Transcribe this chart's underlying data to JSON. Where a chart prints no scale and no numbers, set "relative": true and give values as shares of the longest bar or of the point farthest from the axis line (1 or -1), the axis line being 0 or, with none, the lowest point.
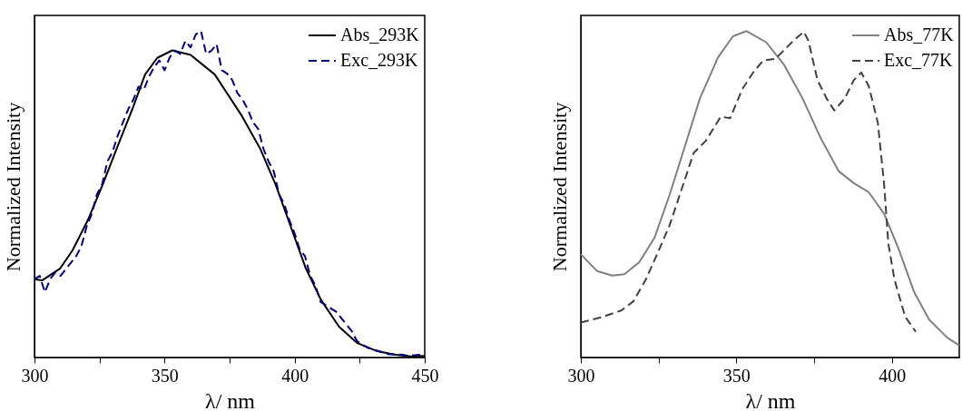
{
  "chart_data": [
    {
      "type": "line",
      "relative": true,
      "xlabel": "λ/ nm",
      "ylabel": "Normalized Intensity",
      "xlim": [
        300,
        450
      ],
      "xticks": [
        300,
        {
          "value": 325,
          "label": null
        },
        350,
        {
          "value": 375,
          "label": null
        },
        400,
        {
          "value": 425,
          "label": null
        },
        450
      ],
      "grid": false,
      "legend": "top right",
      "series": [
        {
          "name": "Abs_293K",
          "color": "#000000",
          "line_style": "solid",
          "x": [
            300,
            302.9,
            309.9,
            314.6,
            320.4,
            326.2,
            332,
            337.9,
            342.5,
            347.2,
            353,
            360,
            369.3,
            379.8,
            386.8,
            392.7,
            398.5,
            404.3,
            410.1,
            417.1,
            424.1,
            431.1,
            438.1,
            445.1,
            450
          ],
          "values": [
            0.24,
            0.236,
            0.273,
            0.328,
            0.419,
            0.529,
            0.648,
            0.767,
            0.867,
            0.918,
            0.941,
            0.927,
            0.867,
            0.739,
            0.639,
            0.529,
            0.401,
            0.273,
            0.177,
            0.094,
            0.044,
            0.021,
            0.009,
            0.003,
            0.005
          ]
        },
        {
          "name": "Exc_293K",
          "color": "#000080",
          "line_style": "dashed",
          "x": [
            300,
            302,
            304,
            306,
            308,
            310,
            312,
            314,
            316,
            318,
            320,
            322,
            324,
            326,
            328,
            330,
            332,
            334,
            336,
            338,
            340,
            342,
            344,
            346,
            348,
            350,
            352,
            354,
            356,
            358,
            360,
            362,
            364,
            366,
            368,
            370,
            372,
            374,
            376,
            378,
            380,
            382,
            384,
            386,
            388,
            390,
            392,
            394,
            396,
            398,
            400,
            402,
            404,
            406,
            408,
            410,
            412,
            414,
            416,
            418,
            420,
            422,
            424,
            426,
            428,
            432,
            436,
            440,
            444,
            450
          ],
          "values": [
            0.24,
            0.25,
            0.2,
            0.24,
            0.26,
            0.25,
            0.27,
            0.29,
            0.31,
            0.34,
            0.4,
            0.44,
            0.5,
            0.53,
            0.6,
            0.63,
            0.68,
            0.72,
            0.76,
            0.79,
            0.83,
            0.82,
            0.86,
            0.89,
            0.91,
            0.88,
            0.92,
            0.94,
            0.93,
            0.97,
            0.95,
            0.99,
            1.0,
            0.93,
            0.94,
            0.96,
            0.88,
            0.87,
            0.85,
            0.81,
            0.79,
            0.76,
            0.72,
            0.7,
            0.64,
            0.6,
            0.57,
            0.5,
            0.47,
            0.42,
            0.38,
            0.33,
            0.31,
            0.25,
            0.22,
            0.17,
            0.16,
            0.15,
            0.14,
            0.12,
            0.1,
            0.08,
            0.05,
            0.04,
            0.03,
            0.02,
            0.01,
            0.01,
            0.005,
            0.01
          ]
        }
      ]
    },
    {
      "type": "line",
      "relative": true,
      "xlabel": "λ/ nm",
      "ylabel": "Normalized Intensity",
      "xlim": [
        300,
        421.7
      ],
      "xticks": [
        300,
        {
          "value": 325,
          "label": null
        },
        350,
        {
          "value": 375,
          "label": null
        },
        400
      ],
      "grid": false,
      "legend": "top right",
      "series": [
        {
          "name": "Abs_77K",
          "color": "#808080",
          "line_style": "solid",
          "x": [
            300,
            305.2,
            310.1,
            314,
            318.8,
            323.7,
            328.5,
            333.4,
            338.3,
            344.1,
            348.9,
            353.3,
            359.6,
            365.4,
            371.3,
            377.1,
            382.9,
            387.8,
            392.6,
            397.5,
            402.3,
            407.2,
            412,
            417.9,
            421.7
          ],
          "values": [
            0.316,
            0.265,
            0.251,
            0.255,
            0.292,
            0.367,
            0.497,
            0.645,
            0.794,
            0.919,
            0.984,
            1.0,
            0.966,
            0.896,
            0.794,
            0.673,
            0.571,
            0.534,
            0.506,
            0.441,
            0.33,
            0.2,
            0.116,
            0.06,
            0.037
          ]
        },
        {
          "name": "Exc_77K",
          "color": "#404040",
          "line_style": "dashed",
          "x": [
            300,
            307.2,
            313,
            316.9,
            320.8,
            324.7,
            328.5,
            332.4,
            336.3,
            340.2,
            345,
            348,
            351.9,
            355.7,
            358.7,
            362.5,
            365.4,
            368.3,
            371.7,
            373.2,
            376.1,
            379,
            381.5,
            384.9,
            387.8,
            390.2,
            392.6,
            395.5,
            397.5,
            398.9,
            400.9,
            404.3,
            407.7
          ],
          "values": [
            0.107,
            0.125,
            0.144,
            0.172,
            0.237,
            0.32,
            0.404,
            0.515,
            0.627,
            0.664,
            0.738,
            0.733,
            0.822,
            0.877,
            0.91,
            0.915,
            0.942,
            0.97,
            0.998,
            0.97,
            0.85,
            0.794,
            0.757,
            0.794,
            0.85,
            0.873,
            0.831,
            0.72,
            0.534,
            0.348,
            0.237,
            0.125,
            0.079
          ]
        }
      ]
    }
  ]
}
